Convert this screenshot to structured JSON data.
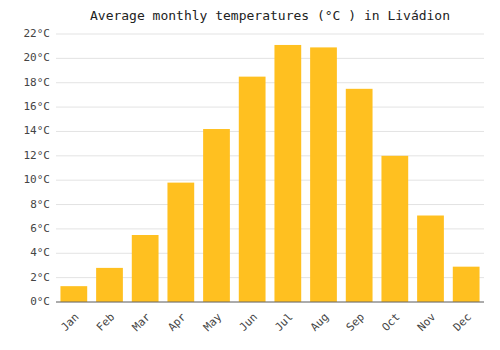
{
  "chart_data": {
    "type": "bar",
    "title": "Average monthly temperatures (°C ) in Livádion",
    "categories": [
      "Jan",
      "Feb",
      "Mar",
      "Apr",
      "May",
      "Jun",
      "Jul",
      "Aug",
      "Sep",
      "Oct",
      "Nov",
      "Dec"
    ],
    "values": [
      1.3,
      2.8,
      5.5,
      9.8,
      14.2,
      18.5,
      21.1,
      20.9,
      17.5,
      12.0,
      7.1,
      2.9
    ],
    "color": "#FFC020",
    "ylim": [
      0,
      22
    ],
    "yticks": [
      {
        "value": 0,
        "label": "0°C"
      },
      {
        "value": 2,
        "label": "2°C"
      },
      {
        "value": 4,
        "label": "4°C"
      },
      {
        "value": 6,
        "label": "6°C"
      },
      {
        "value": 8,
        "label": "8°C"
      },
      {
        "value": 10,
        "label": "10°C"
      },
      {
        "value": 12,
        "label": "12°C"
      },
      {
        "value": 14,
        "label": "14°C"
      },
      {
        "value": 16,
        "label": "16°C"
      },
      {
        "value": 18,
        "label": "18°C"
      },
      {
        "value": 20,
        "label": "20°C"
      },
      {
        "value": 22,
        "label": "22°C"
      }
    ],
    "grid": true
  }
}
